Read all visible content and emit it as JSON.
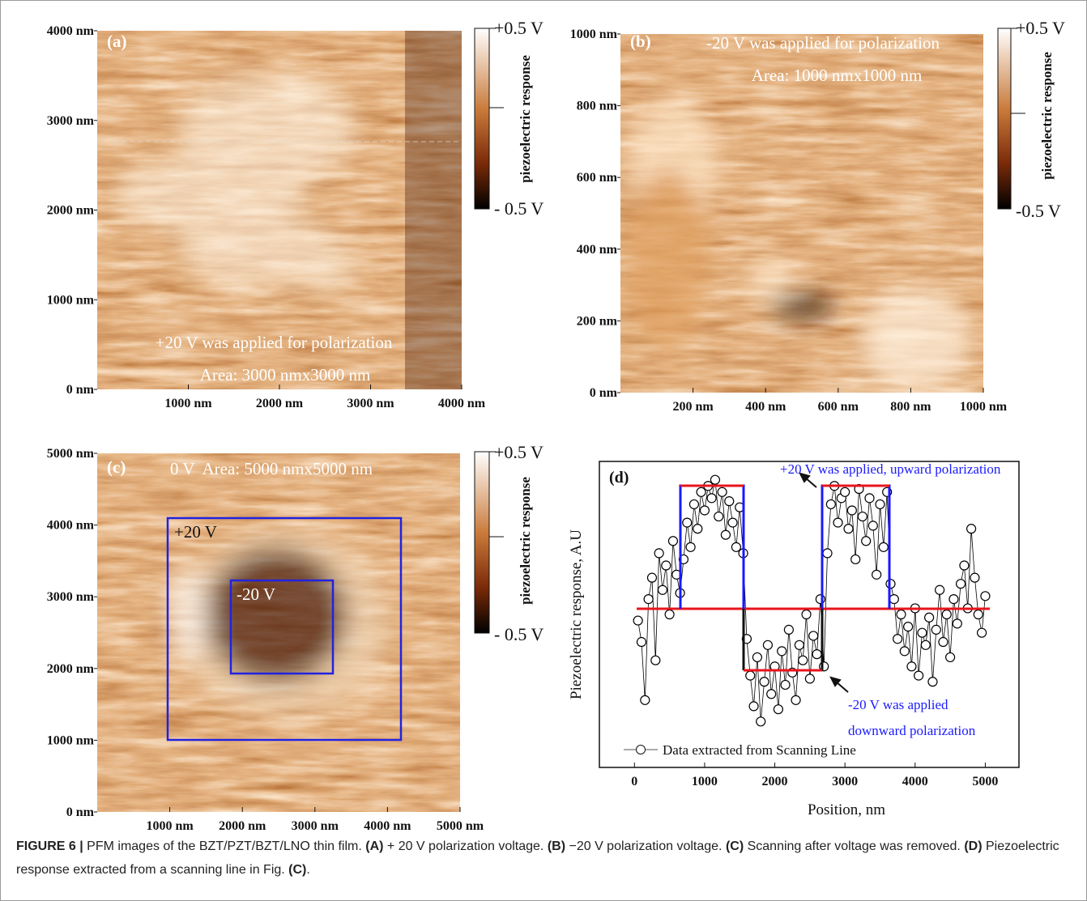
{
  "chart_data": [
    {
      "type": "image",
      "label": "(a)",
      "annotations": [
        "+20 V was applied for polarization",
        "Area: 3000 nmx3000 nm"
      ],
      "xlim": [
        0,
        4000
      ],
      "ylim": [
        0,
        4000
      ],
      "xticks": [
        {
          "value": 1000,
          "label": "1000 nm"
        },
        {
          "value": 2000,
          "label": "2000 nm"
        },
        {
          "value": 3000,
          "label": "3000 nm"
        },
        {
          "value": 4000,
          "label": "4000 nm"
        }
      ],
      "yticks": [
        {
          "value": 0,
          "label": "0 nm"
        },
        {
          "value": 1000,
          "label": "1000 nm"
        },
        {
          "value": 2000,
          "label": "2000 nm"
        },
        {
          "value": 3000,
          "label": "3000 nm"
        },
        {
          "value": 4000,
          "label": "4000 nm"
        }
      ],
      "colorbar": {
        "title": "piezoelectric response",
        "max_label": "+0.5 V",
        "min_label": "- 0.5 V"
      }
    },
    {
      "type": "image",
      "label": "(b)",
      "annotations": [
        "-20 V was applied for polarization",
        "Area: 1000 nmx1000 nm"
      ],
      "xlim": [
        0,
        1000
      ],
      "ylim": [
        0,
        1000
      ],
      "xticks": [
        {
          "value": 200,
          "label": "200 nm"
        },
        {
          "value": 400,
          "label": "400 nm"
        },
        {
          "value": 600,
          "label": "600 nm"
        },
        {
          "value": 800,
          "label": "800 nm"
        },
        {
          "value": 1000,
          "label": "1000 nm"
        }
      ],
      "yticks": [
        {
          "value": 0,
          "label": "0 nm"
        },
        {
          "value": 200,
          "label": "200 nm"
        },
        {
          "value": 400,
          "label": "400 nm"
        },
        {
          "value": 600,
          "label": "600 nm"
        },
        {
          "value": 800,
          "label": "800 nm"
        },
        {
          "value": 1000,
          "label": "1000 nm"
        }
      ],
      "colorbar": {
        "title": "piezoelectric response",
        "max_label": "+0.5 V",
        "min_label": "-0.5 V"
      }
    },
    {
      "type": "image",
      "label": "(c)",
      "annotations": [
        "0 V  Area: 5000 nmx5000 nm",
        "+20 V",
        "-20 V"
      ],
      "xlim": [
        0,
        5000
      ],
      "ylim": [
        0,
        5000
      ],
      "xticks": [
        {
          "value": 1000,
          "label": "1000 nm"
        },
        {
          "value": 2000,
          "label": "2000 nm"
        },
        {
          "value": 3000,
          "label": "3000 nm"
        },
        {
          "value": 4000,
          "label": "4000 nm"
        },
        {
          "value": 5000,
          "label": "5000 nm"
        }
      ],
      "yticks": [
        {
          "value": 0,
          "label": "0 nm"
        },
        {
          "value": 1000,
          "label": "1000 nm"
        },
        {
          "value": 2000,
          "label": "2000 nm"
        },
        {
          "value": 3000,
          "label": "3000 nm"
        },
        {
          "value": 4000,
          "label": "4000 nm"
        },
        {
          "value": 5000,
          "label": "5000 nm"
        }
      ],
      "colorbar": {
        "title": "piezoelectric response",
        "max_label": "+0.5 V",
        "min_label": "- 0.5 V"
      }
    },
    {
      "type": "scatter",
      "label": "(d)",
      "x_label": "Position, nm",
      "y_label": "Piezoelectric response, A.U",
      "annotations": [
        "+20 V was applied, upward polarization",
        "-20 V was applied",
        "downward polarization"
      ],
      "xlim": [
        -500,
        5480
      ],
      "ylim": [
        0,
        1
      ],
      "xticks": [
        0,
        1000,
        2000,
        3000,
        4000,
        5000
      ],
      "x": [
        50,
        100,
        150,
        200,
        250,
        300,
        350,
        400,
        450,
        500,
        550,
        600,
        650,
        700,
        750,
        800,
        850,
        900,
        950,
        1000,
        1050,
        1100,
        1150,
        1200,
        1250,
        1300,
        1350,
        1400,
        1450,
        1500,
        1550,
        1600,
        1650,
        1700,
        1750,
        1800,
        1850,
        1900,
        1950,
        2000,
        2050,
        2100,
        2150,
        2200,
        2250,
        2300,
        2350,
        2400,
        2450,
        2500,
        2550,
        2600,
        2650,
        2700,
        2750,
        2800,
        2850,
        2900,
        2950,
        3000,
        3050,
        3100,
        3150,
        3200,
        3250,
        3300,
        3350,
        3400,
        3450,
        3500,
        3550,
        3600,
        3650,
        3700,
        3750,
        3800,
        3850,
        3900,
        3950,
        4000,
        4050,
        4100,
        4150,
        4200,
        4250,
        4300,
        4350,
        4400,
        4450,
        4500,
        4550,
        4600,
        4650,
        4700,
        4750,
        4800,
        4850,
        4900,
        4950,
        5000
      ],
      "series": [
        {
          "name": "Data extracted from Scanning Line",
          "color": "#000000",
          "values": [
            0.48,
            0.41,
            0.22,
            0.55,
            0.62,
            0.35,
            0.7,
            0.58,
            0.66,
            0.5,
            0.74,
            0.63,
            0.57,
            0.68,
            0.8,
            0.72,
            0.86,
            0.78,
            0.9,
            0.84,
            0.92,
            0.88,
            0.94,
            0.82,
            0.9,
            0.76,
            0.87,
            0.8,
            0.72,
            0.85,
            0.7,
            0.42,
            0.3,
            0.2,
            0.36,
            0.15,
            0.28,
            0.4,
            0.24,
            0.33,
            0.19,
            0.38,
            0.27,
            0.45,
            0.31,
            0.22,
            0.4,
            0.35,
            0.5,
            0.29,
            0.43,
            0.37,
            0.55,
            0.33,
            0.7,
            0.86,
            0.92,
            0.8,
            0.88,
            0.9,
            0.78,
            0.84,
            0.68,
            0.91,
            0.82,
            0.74,
            0.88,
            0.79,
            0.63,
            0.86,
            0.72,
            0.9,
            0.6,
            0.55,
            0.42,
            0.5,
            0.38,
            0.46,
            0.33,
            0.52,
            0.3,
            0.44,
            0.4,
            0.49,
            0.28,
            0.45,
            0.58,
            0.41,
            0.5,
            0.36,
            0.55,
            0.47,
            0.6,
            0.66,
            0.52,
            0.78,
            0.62,
            0.5,
            0.44,
            0.56
          ]
        }
      ]
    }
  ],
  "caption": [
    {
      "text": "FIGURE 6 |",
      "bold": true
    },
    {
      "text": " PFM images of the BZT/PZT/BZT/LNO thin film. ",
      "bold": false
    },
    {
      "text": "(A)",
      "bold": true
    },
    {
      "text": " + 20 V polarization voltage. ",
      "bold": false
    },
    {
      "text": "(B)",
      "bold": true
    },
    {
      "text": " −20 V polarization voltage. ",
      "bold": false
    },
    {
      "text": "(C)",
      "bold": true
    },
    {
      "text": " Scanning after voltage was removed. ",
      "bold": false
    },
    {
      "text": "(D)",
      "bold": true
    },
    {
      "text": " Piezoelectric response extracted from a scanning line in Fig. ",
      "bold": false
    },
    {
      "text": "(C)",
      "bold": true
    },
    {
      "text": ".",
      "bold": false
    }
  ]
}
